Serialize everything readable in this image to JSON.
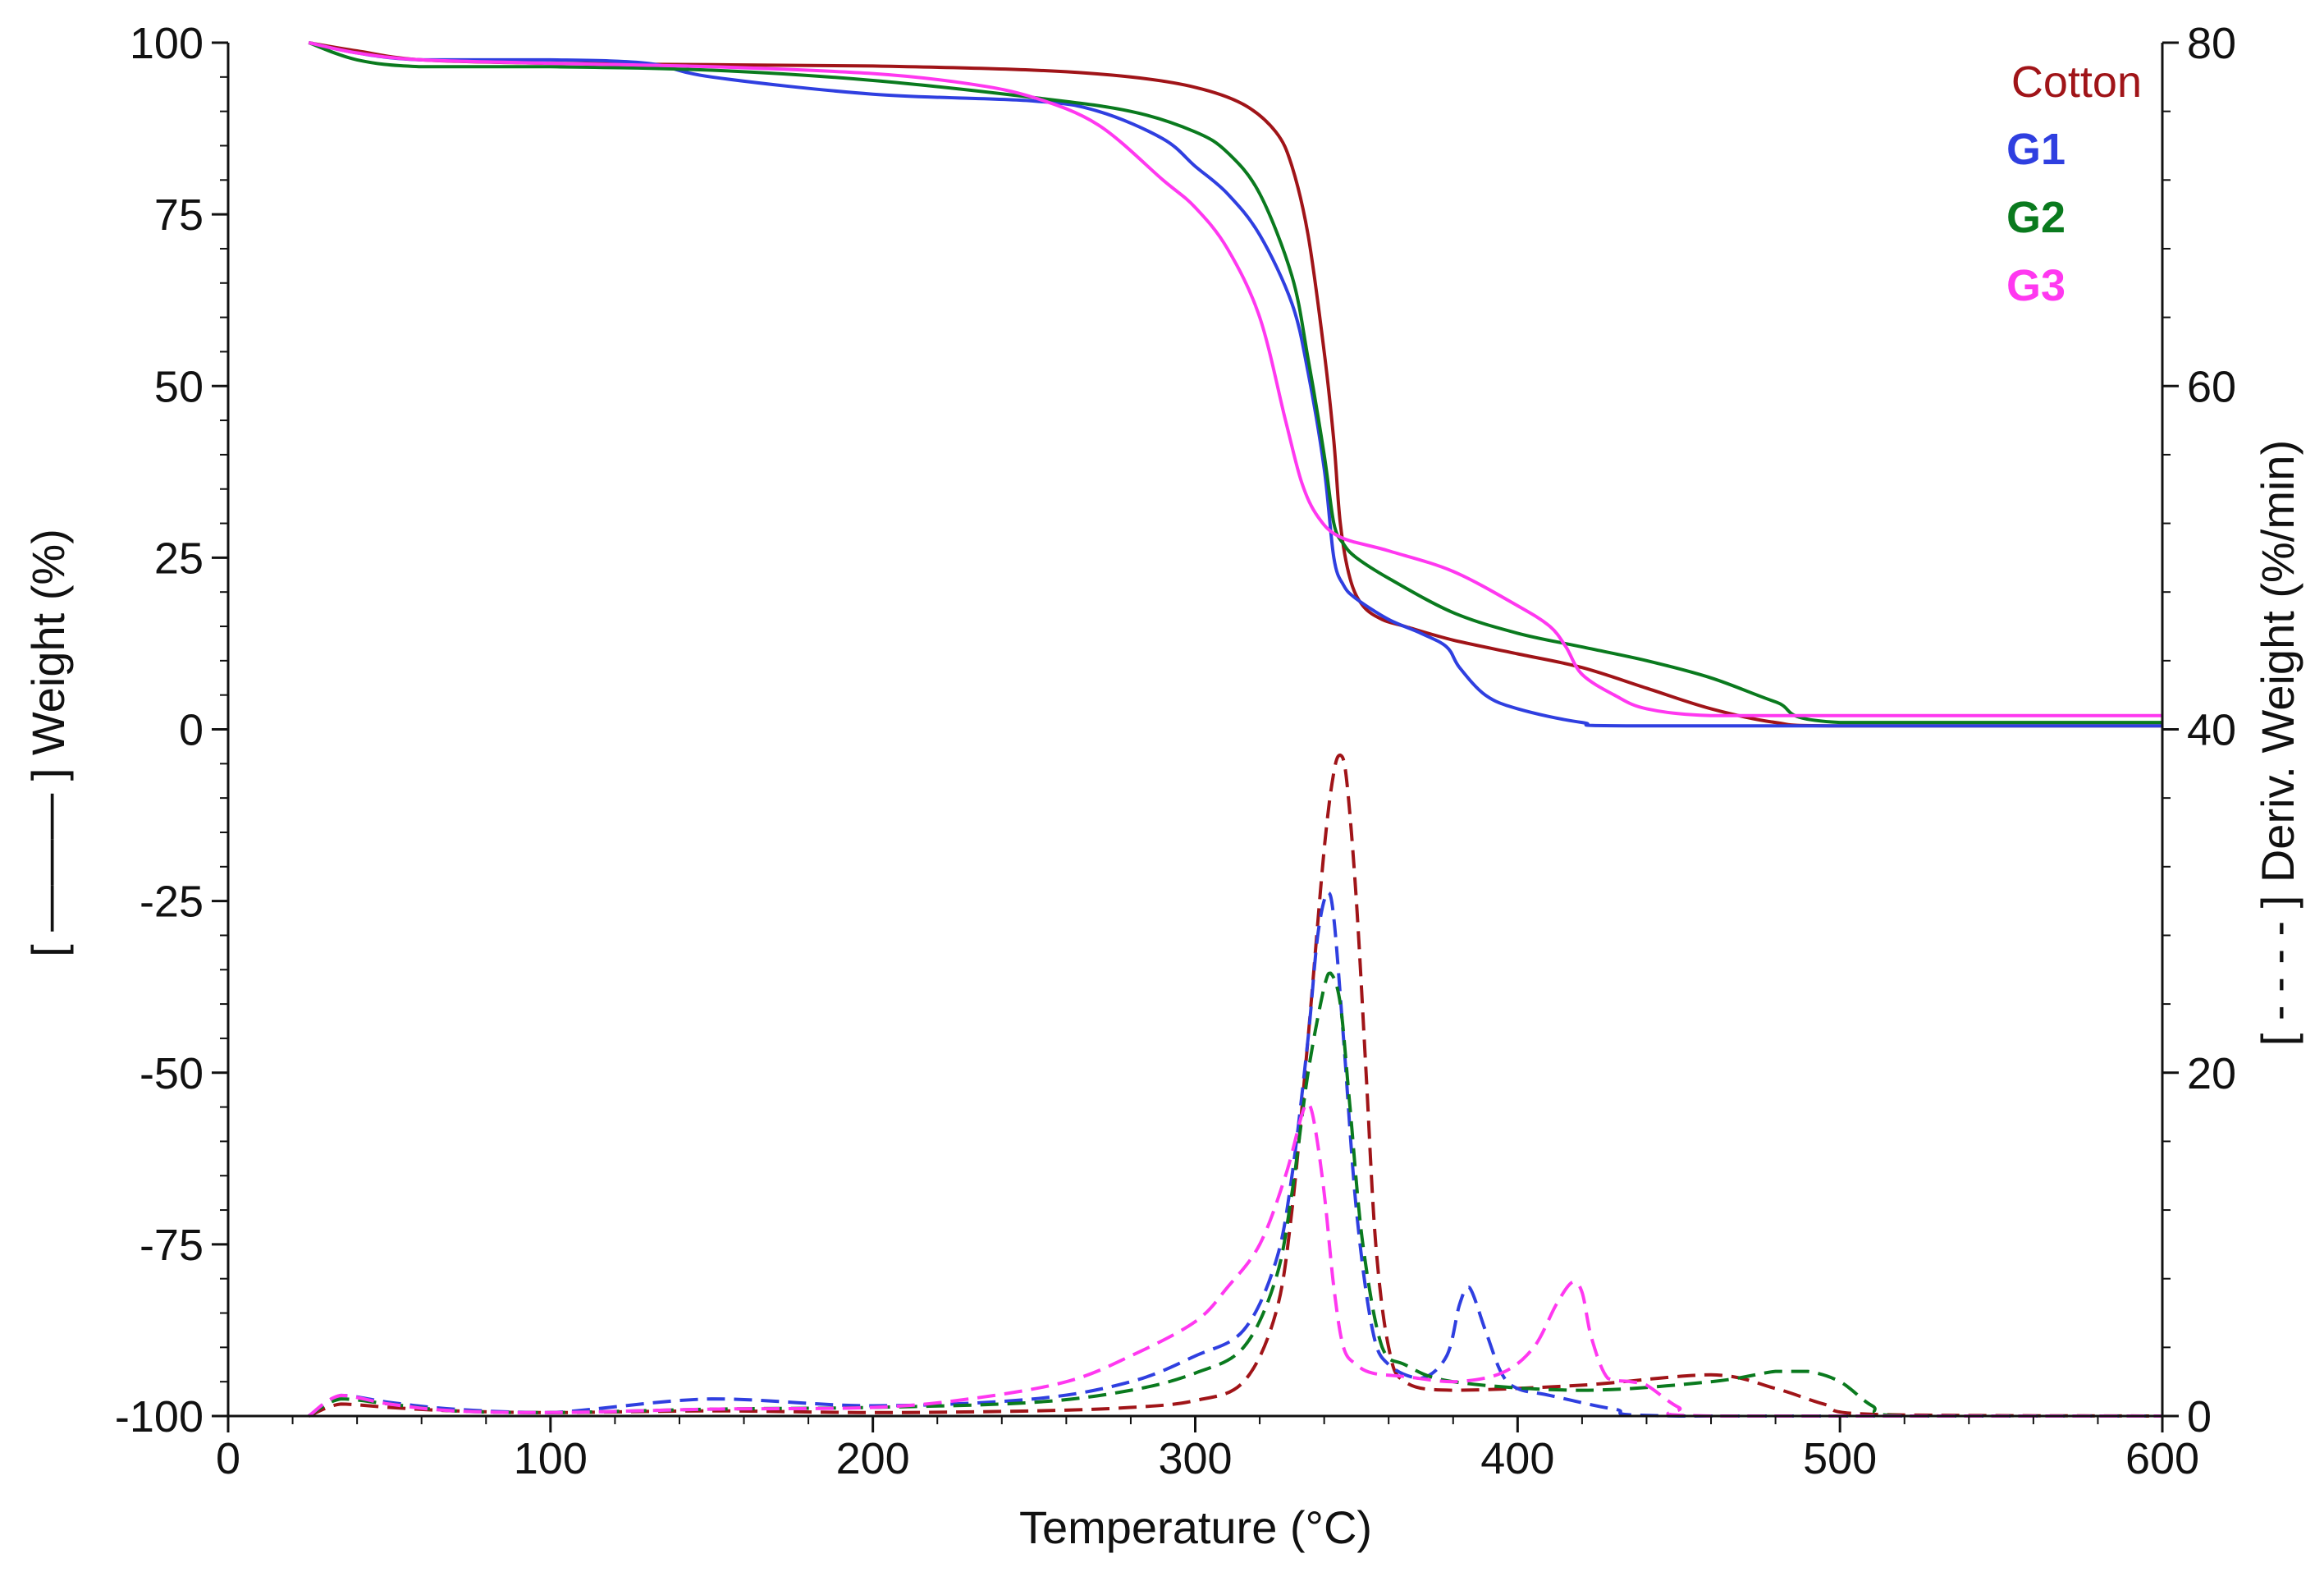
{
  "chart_data": {
    "type": "line",
    "title": "",
    "xlabel": "Temperature (°C)",
    "ylabel_left": "[ ——— ] Weight (%)",
    "ylabel_right": "[ - - - - ] Deriv. Weight (%/min)",
    "xlim": [
      0,
      600
    ],
    "ylim_left": [
      -100,
      100
    ],
    "ylim_right": [
      0,
      80
    ],
    "x_ticks": [
      0,
      100,
      200,
      300,
      400,
      500,
      600
    ],
    "y_left_ticks": [
      -100,
      -75,
      -50,
      -25,
      0,
      25,
      50,
      75,
      100
    ],
    "y_right_ticks": [
      0,
      20,
      40,
      60,
      80
    ],
    "legend_position": "top-right",
    "legend": [
      {
        "name": "Cotton",
        "color": "#a01418",
        "bold": false
      },
      {
        "name": "G1",
        "color": "#2f3fe0",
        "bold": true
      },
      {
        "name": "G2",
        "color": "#0a7a1e",
        "bold": true
      },
      {
        "name": "G3",
        "color": "#ff38f0",
        "bold": true
      }
    ],
    "series": [
      {
        "name": "Cotton",
        "color": "#a01418",
        "axis": "left",
        "style": "solid",
        "x": [
          25,
          40,
          60,
          100,
          150,
          200,
          250,
          280,
          300,
          315,
          325,
          330,
          335,
          340,
          343,
          345,
          348,
          352,
          358,
          365,
          380,
          400,
          420,
          440,
          460,
          480,
          500,
          600
        ],
        "y": [
          100,
          98.8,
          97.5,
          97,
          96.8,
          96.6,
          96,
          95,
          93.5,
          91,
          87,
          82,
          72,
          55,
          42,
          30,
          22,
          18,
          16,
          15,
          13,
          11,
          9,
          6,
          3,
          1,
          0.5,
          0.5
        ]
      },
      {
        "name": "G1",
        "color": "#2f3fe0",
        "axis": "left",
        "style": "solid",
        "x": [
          25,
          40,
          60,
          100,
          130,
          150,
          200,
          250,
          270,
          290,
          300,
          310,
          320,
          330,
          335,
          340,
          343,
          346,
          350,
          360,
          370,
          378,
          382,
          390,
          400,
          420,
          440,
          600
        ],
        "y": [
          100,
          98.5,
          97.5,
          97.5,
          97,
          95,
          92.5,
          91.5,
          90,
          86,
          82,
          78,
          72,
          62,
          52,
          38,
          25,
          21,
          19,
          16,
          14,
          12,
          9,
          5,
          3,
          1,
          0.5,
          0.5
        ]
      },
      {
        "name": "G2",
        "color": "#0a7a1e",
        "axis": "left",
        "style": "solid",
        "x": [
          25,
          40,
          60,
          100,
          150,
          200,
          250,
          280,
          300,
          310,
          320,
          330,
          335,
          340,
          343,
          346,
          350,
          360,
          380,
          400,
          420,
          440,
          460,
          480,
          500,
          600
        ],
        "y": [
          100,
          97.5,
          96.5,
          96.5,
          96,
          94.5,
          92,
          90,
          87,
          84,
          78,
          66,
          54,
          40,
          30,
          27,
          25,
          22,
          17,
          14,
          12,
          10,
          7.5,
          4,
          1,
          1
        ]
      },
      {
        "name": "G3",
        "color": "#ff38f0",
        "axis": "left",
        "style": "solid",
        "x": [
          25,
          40,
          60,
          100,
          150,
          200,
          230,
          250,
          270,
          290,
          300,
          310,
          320,
          328,
          333,
          338,
          345,
          360,
          380,
          400,
          410,
          415,
          420,
          430,
          440,
          460,
          500,
          600
        ],
        "y": [
          100,
          98.5,
          97.5,
          97,
          96.5,
          95.5,
          94,
          92,
          88,
          80,
          76,
          70,
          60,
          45,
          36,
          31,
          28,
          26,
          23,
          18,
          15,
          12,
          8,
          5,
          3,
          2,
          2,
          2
        ]
      },
      {
        "name": "Cotton DTG",
        "color": "#a01418",
        "axis": "right",
        "style": "dashed",
        "x": [
          25,
          35,
          50,
          70,
          100,
          150,
          200,
          250,
          280,
          300,
          315,
          325,
          330,
          335,
          340,
          343,
          345,
          347,
          350,
          353,
          356,
          360,
          365,
          380,
          420,
          460,
          480,
          495,
          510,
          600
        ],
        "y": [
          0,
          0.7,
          0.5,
          0.3,
          0.2,
          0.3,
          0.2,
          0.3,
          0.5,
          0.9,
          2,
          6,
          12,
          22,
          33,
          37.5,
          38.5,
          37,
          30,
          20,
          10,
          4,
          2,
          1.5,
          1.8,
          2.4,
          1.6,
          0.7,
          0.1,
          0
        ]
      },
      {
        "name": "G1 DTG",
        "color": "#2f3fe0",
        "axis": "right",
        "style": "dashed",
        "x": [
          25,
          35,
          50,
          70,
          100,
          150,
          200,
          250,
          280,
          300,
          315,
          325,
          330,
          335,
          338,
          341,
          343,
          346,
          350,
          355,
          360,
          370,
          378,
          382,
          385,
          390,
          395,
          400,
          410,
          430,
          450,
          600
        ],
        "y": [
          0,
          1.2,
          0.8,
          0.4,
          0.2,
          1,
          0.6,
          1,
          2,
          3.5,
          5,
          9,
          14,
          22,
          28,
          30.5,
          29,
          22,
          12,
          5,
          3,
          2.2,
          3.5,
          6.5,
          7.5,
          5,
          2.5,
          1.6,
          1.2,
          0.4,
          0,
          0
        ]
      },
      {
        "name": "G2 DTG",
        "color": "#0a7a1e",
        "axis": "right",
        "style": "dashed",
        "x": [
          25,
          35,
          50,
          70,
          100,
          150,
          200,
          250,
          280,
          300,
          315,
          325,
          330,
          335,
          340,
          342,
          345,
          348,
          352,
          358,
          365,
          380,
          420,
          460,
          480,
          490,
          500,
          510,
          520,
          600
        ],
        "y": [
          0,
          1,
          0.7,
          0.3,
          0.2,
          0.4,
          0.5,
          0.8,
          1.5,
          2.5,
          4,
          8,
          13,
          20,
          25,
          25.8,
          24,
          18,
          10,
          4,
          3,
          2,
          1.5,
          2,
          2.6,
          2.6,
          2,
          0.6,
          0,
          0
        ]
      },
      {
        "name": "G3 DTG",
        "color": "#ff38f0",
        "axis": "right",
        "style": "dashed",
        "x": [
          25,
          35,
          50,
          70,
          100,
          150,
          200,
          230,
          260,
          280,
          300,
          310,
          320,
          328,
          333,
          335,
          337,
          340,
          343,
          346,
          350,
          355,
          365,
          380,
          395,
          405,
          412,
          417,
          420,
          423,
          428,
          435,
          440,
          450,
          460,
          600
        ],
        "y": [
          0,
          1.2,
          0.7,
          0.3,
          0.2,
          0.4,
          0.5,
          1,
          2,
          3.5,
          5.5,
          7.5,
          10,
          14,
          17.5,
          18.2,
          17,
          13,
          7.5,
          4,
          3,
          2.5,
          2.3,
          2,
          2.5,
          4,
          6.5,
          7.8,
          7.2,
          4.5,
          2.2,
          2,
          1.8,
          0.5,
          0,
          0
        ]
      }
    ]
  }
}
